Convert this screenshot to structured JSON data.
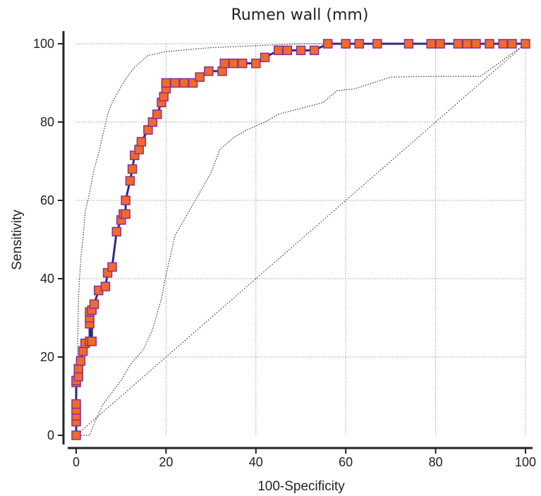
{
  "chart_data": {
    "type": "line",
    "title": "Rumen wall (mm)",
    "xlabel": "100-Specificity",
    "ylabel": "Sensitivity",
    "xlim": [
      0,
      100
    ],
    "ylim": [
      0,
      100
    ],
    "xticks": [
      0,
      20,
      40,
      60,
      80,
      100
    ],
    "yticks": [
      0,
      20,
      40,
      60,
      80,
      100
    ],
    "x_tick_labels": [
      "0",
      "20",
      "40",
      "60",
      "80",
      "100"
    ],
    "y_tick_labels": [
      "0",
      "20",
      "40",
      "60",
      "80",
      "100"
    ],
    "grid": true,
    "colors": {
      "roc_line": "#2b2b8c",
      "marker_fill": "#f26a2a",
      "marker_edge": "#8b2f8f",
      "ci_line": "#333333",
      "diagonal": "#333333",
      "grid": "#9a9a9a",
      "axis": "#222222"
    },
    "series": [
      {
        "style": "roc-curve-with-markers",
        "x": [
          0,
          0,
          0,
          0,
          0,
          0,
          0,
          0.5,
          0.5,
          1,
          1.5,
          2,
          3,
          3,
          3,
          3,
          3.5,
          3.5,
          4,
          5,
          5,
          6.5,
          7,
          8,
          9,
          10,
          10.5,
          11,
          11,
          12,
          12.5,
          13,
          14,
          14.5,
          16,
          17,
          18,
          19,
          19.5,
          20,
          20,
          22,
          24,
          26,
          27.5,
          29.5,
          32.5,
          33,
          35,
          37,
          40,
          42,
          45,
          47,
          50,
          53,
          56,
          60,
          63,
          67,
          74,
          79,
          81,
          85,
          87,
          89,
          92,
          95,
          97,
          100
        ],
        "y": [
          0,
          3.5,
          5,
          6.5,
          8,
          13.5,
          14,
          15,
          17,
          19,
          21.5,
          23.5,
          24,
          28.5,
          30,
          31.5,
          24,
          32,
          33.5,
          37,
          37,
          38,
          41.5,
          43,
          52,
          55,
          56.5,
          56.5,
          60,
          65,
          68,
          71.5,
          73,
          75,
          78,
          80,
          82,
          85,
          86.5,
          88.5,
          90,
          90,
          90,
          90,
          91.5,
          93,
          93,
          95,
          95,
          95,
          95,
          96.5,
          98.3,
          98.3,
          98.3,
          98.3,
          100,
          100,
          100,
          100,
          100,
          100,
          100,
          100,
          100,
          100,
          100,
          100,
          100,
          100
        ]
      },
      {
        "style": "upper-confidence-bound",
        "x": [
          0,
          0.5,
          1,
          1.5,
          2,
          3,
          4,
          5,
          6,
          7,
          8,
          9,
          10,
          11,
          12,
          13,
          14,
          15,
          16,
          18,
          20,
          25,
          30,
          40,
          50,
          60,
          100
        ],
        "y": [
          0,
          35,
          45,
          50,
          57,
          62,
          68,
          72,
          77,
          82,
          85,
          87,
          89,
          91,
          92.5,
          94,
          95,
          96,
          97,
          97.5,
          98,
          98.5,
          99,
          99.5,
          100,
          100,
          100
        ]
      },
      {
        "style": "lower-confidence-bound",
        "x": [
          0,
          3,
          4,
          6,
          8,
          10,
          12,
          15,
          17,
          19,
          20,
          21,
          22,
          25,
          28,
          30,
          32,
          35,
          38,
          42,
          45,
          50,
          55,
          58,
          62,
          70,
          80,
          90,
          100
        ],
        "y": [
          0,
          0,
          3,
          8,
          11,
          14,
          18,
          22,
          27,
          35,
          41,
          46,
          51,
          57,
          63,
          67,
          73,
          76,
          78,
          80,
          82,
          83.5,
          85,
          88,
          88.5,
          91.5,
          91.7,
          91.7,
          100
        ]
      },
      {
        "style": "reference-diagonal",
        "x": [
          0,
          100
        ],
        "y": [
          0,
          100
        ]
      }
    ]
  }
}
